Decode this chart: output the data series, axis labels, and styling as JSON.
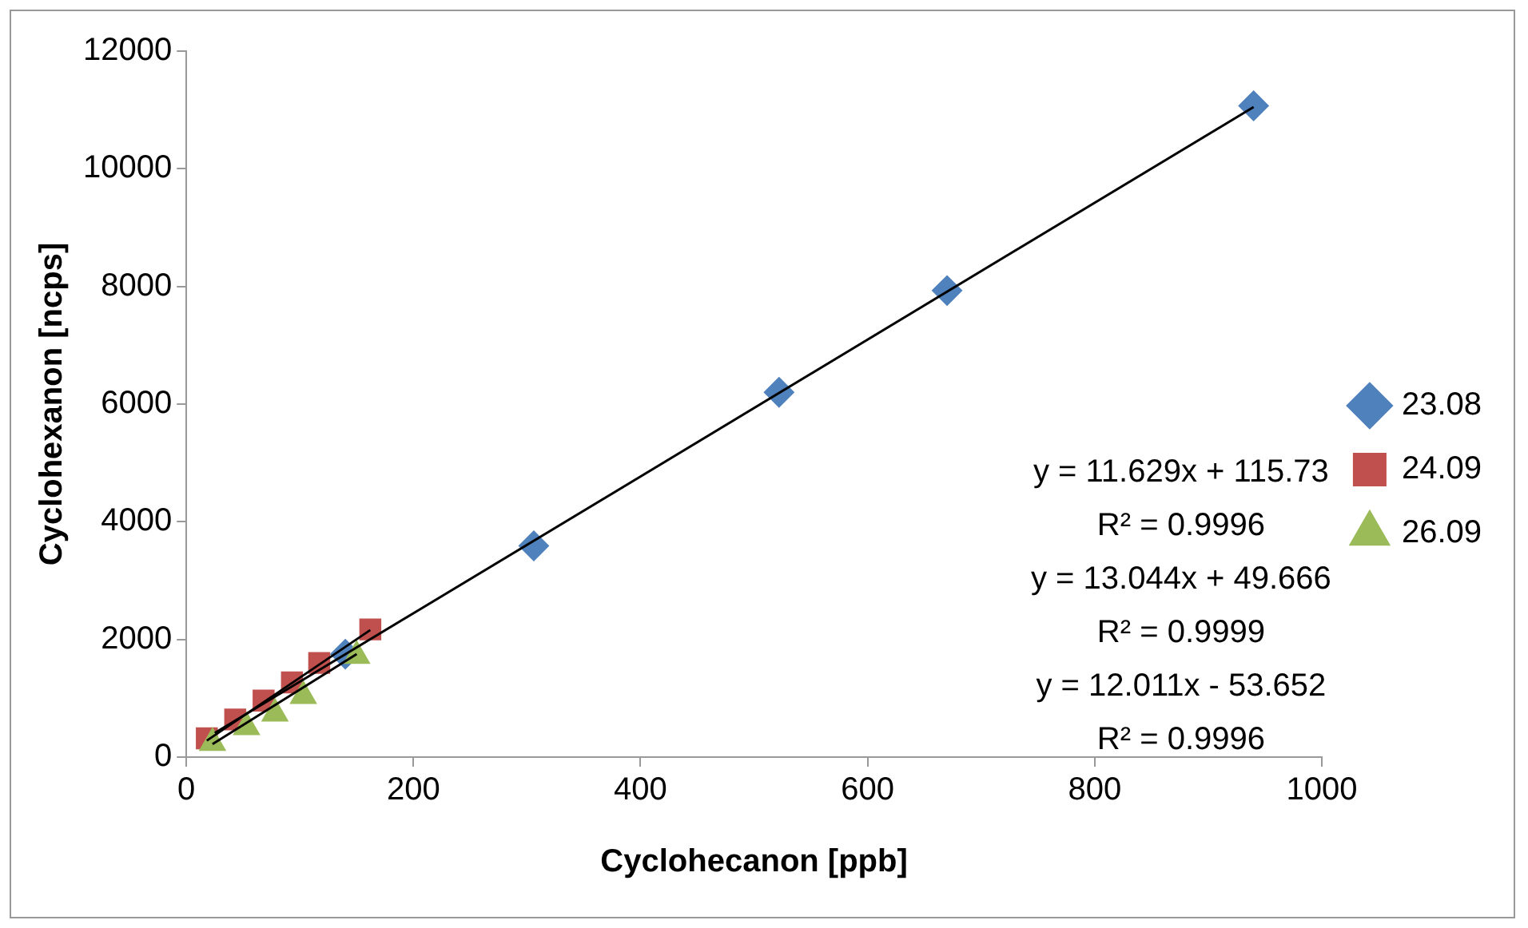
{
  "chart_data": {
    "type": "scatter",
    "xlabel": "Cyclohecanon [ppb]",
    "ylabel": "Cyclohexanon [ncps]",
    "xlim": [
      0,
      1000
    ],
    "xticks": [
      0,
      200,
      400,
      600,
      800,
      1000
    ],
    "ylim": [
      0,
      12000
    ],
    "yticks": [
      0,
      2000,
      4000,
      6000,
      8000,
      10000,
      12000
    ],
    "grid": false,
    "legend": "right",
    "series": [
      {
        "name": "23.08",
        "color": "#4f81bd",
        "marker": "diamond",
        "x": [
          140,
          306,
          522,
          670,
          940
        ],
        "values": [
          1750,
          3590,
          6200,
          7930,
          11070
        ]
      },
      {
        "name": "24.09",
        "color": "#c0504d",
        "marker": "square",
        "x": [
          18,
          43,
          68,
          93,
          117,
          162
        ],
        "values": [
          320,
          640,
          960,
          1270,
          1600,
          2170
        ]
      },
      {
        "name": "26.09",
        "color": "#9bbb59",
        "marker": "triangle",
        "x": [
          23,
          53,
          78,
          103,
          150
        ],
        "values": [
          240,
          510,
          740,
          1040,
          1720
        ]
      },
      {
        "type": "line",
        "color": "#000000",
        "marker": "none",
        "x": [
          25,
          940
        ],
        "values": [
          410,
          11050
        ]
      },
      {
        "type": "line",
        "color": "#000000",
        "marker": "none",
        "x": [
          18,
          162
        ],
        "values": [
          280,
          2160
        ]
      },
      {
        "type": "line",
        "color": "#000000",
        "marker": "none",
        "x": [
          23,
          150
        ],
        "values": [
          220,
          1750
        ]
      }
    ],
    "annotations": [
      "y = 11.629x + 115.73",
      "R² = 0.9996",
      "y = 13.044x + 49.666",
      "R² = 0.9999",
      "y = 12.011x - 53.652",
      "R² = 0.9996"
    ]
  }
}
